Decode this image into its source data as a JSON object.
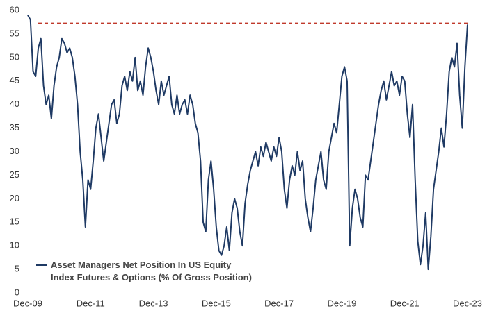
{
  "chart_data": {
    "type": "line",
    "x": [
      "2009-12",
      "2010-01",
      "2010-02",
      "2010-03",
      "2010-04",
      "2010-05",
      "2010-06",
      "2010-07",
      "2010-08",
      "2010-09",
      "2010-10",
      "2010-11",
      "2010-12",
      "2011-01",
      "2011-02",
      "2011-03",
      "2011-04",
      "2011-05",
      "2011-06",
      "2011-07",
      "2011-08",
      "2011-09",
      "2011-10",
      "2011-11",
      "2011-12",
      "2012-01",
      "2012-02",
      "2012-03",
      "2012-04",
      "2012-05",
      "2012-06",
      "2012-07",
      "2012-08",
      "2012-09",
      "2012-10",
      "2012-11",
      "2012-12",
      "2013-01",
      "2013-02",
      "2013-03",
      "2013-04",
      "2013-05",
      "2013-06",
      "2013-07",
      "2013-08",
      "2013-09",
      "2013-10",
      "2013-11",
      "2013-12",
      "2014-01",
      "2014-02",
      "2014-03",
      "2014-04",
      "2014-05",
      "2014-06",
      "2014-07",
      "2014-08",
      "2014-09",
      "2014-10",
      "2014-11",
      "2014-12",
      "2015-01",
      "2015-02",
      "2015-03",
      "2015-04",
      "2015-05",
      "2015-06",
      "2015-07",
      "2015-08",
      "2015-09",
      "2015-10",
      "2015-11",
      "2015-12",
      "2016-01",
      "2016-02",
      "2016-03",
      "2016-04",
      "2016-05",
      "2016-06",
      "2016-07",
      "2016-08",
      "2016-09",
      "2016-10",
      "2016-11",
      "2016-12",
      "2017-01",
      "2017-02",
      "2017-03",
      "2017-04",
      "2017-05",
      "2017-06",
      "2017-07",
      "2017-08",
      "2017-09",
      "2017-10",
      "2017-11",
      "2017-12",
      "2018-01",
      "2018-02",
      "2018-03",
      "2018-04",
      "2018-05",
      "2018-06",
      "2018-07",
      "2018-08",
      "2018-09",
      "2018-10",
      "2018-11",
      "2018-12",
      "2019-01",
      "2019-02",
      "2019-03",
      "2019-04",
      "2019-05",
      "2019-06",
      "2019-07",
      "2019-08",
      "2019-09",
      "2019-10",
      "2019-11",
      "2019-12",
      "2020-01",
      "2020-02",
      "2020-03",
      "2020-04",
      "2020-05",
      "2020-06",
      "2020-07",
      "2020-08",
      "2020-09",
      "2020-10",
      "2020-11",
      "2020-12",
      "2021-01",
      "2021-02",
      "2021-03",
      "2021-04",
      "2021-05",
      "2021-06",
      "2021-07",
      "2021-08",
      "2021-09",
      "2021-10",
      "2021-11",
      "2021-12",
      "2022-01",
      "2022-02",
      "2022-03",
      "2022-04",
      "2022-05",
      "2022-06",
      "2022-07",
      "2022-08",
      "2022-09",
      "2022-10",
      "2022-11",
      "2022-12",
      "2023-01",
      "2023-02",
      "2023-03",
      "2023-04",
      "2023-05",
      "2023-06",
      "2023-07",
      "2023-08",
      "2023-09",
      "2023-10",
      "2023-11",
      "2023-12"
    ],
    "series": [
      {
        "name": "Asset Managers Net Position In US Equity\nIndex Futures & Options (% Of Gross Position)",
        "color": "#1f3a64",
        "values": [
          59,
          58,
          47,
          46,
          52,
          54,
          44,
          40,
          42,
          37,
          44,
          48,
          50,
          54,
          53,
          51,
          52,
          50,
          46,
          40,
          30,
          24,
          14,
          24,
          22,
          28,
          35,
          38,
          33,
          28,
          32,
          36,
          40,
          41,
          36,
          38,
          44,
          46,
          43,
          47,
          45,
          50,
          43,
          45,
          42,
          48,
          52,
          50,
          47,
          43,
          40,
          45,
          42,
          44,
          46,
          40,
          38,
          42,
          38,
          40,
          41,
          38,
          42,
          40,
          36,
          34,
          28,
          15,
          13,
          24,
          28,
          22,
          14,
          9,
          8,
          10,
          14,
          9,
          17,
          20,
          18,
          13,
          10,
          19,
          23,
          26,
          28,
          30,
          27,
          31,
          29,
          32,
          30,
          28,
          31,
          29,
          33,
          30,
          22,
          18,
          24,
          27,
          25,
          30,
          26,
          28,
          20,
          16,
          13,
          18,
          24,
          27,
          30,
          24,
          22,
          30,
          33,
          36,
          34,
          40,
          46,
          48,
          45,
          10,
          18,
          22,
          20,
          16,
          14,
          25,
          24,
          28,
          32,
          36,
          40,
          43,
          45,
          41,
          44,
          47,
          44,
          45,
          42,
          46,
          45,
          38,
          33,
          40,
          24,
          11,
          6,
          10,
          17,
          5,
          12,
          22,
          26,
          30,
          35,
          31,
          38,
          47,
          50,
          48,
          53,
          42,
          35,
          48,
          57
        ]
      }
    ],
    "xlim": [
      "2009-12",
      "2023-12"
    ],
    "xticks": [
      {
        "value": "2009-12",
        "label": "Dec-09"
      },
      {
        "value": "2011-12",
        "label": "Dec-11"
      },
      {
        "value": "2013-12",
        "label": "Dec-13"
      },
      {
        "value": "2015-12",
        "label": "Dec-15"
      },
      {
        "value": "2017-12",
        "label": "Dec-17"
      },
      {
        "value": "2019-12",
        "label": "Dec-19"
      },
      {
        "value": "2021-12",
        "label": "Dec-21"
      },
      {
        "value": "2023-12",
        "label": "Dec-23"
      }
    ],
    "ylim": [
      0,
      60
    ],
    "yticks": [
      0,
      5,
      10,
      15,
      20,
      25,
      30,
      35,
      40,
      45,
      50,
      55,
      60
    ],
    "reference_line": {
      "value": 57.3,
      "color": "#c0392b"
    },
    "legend": "lower left"
  }
}
